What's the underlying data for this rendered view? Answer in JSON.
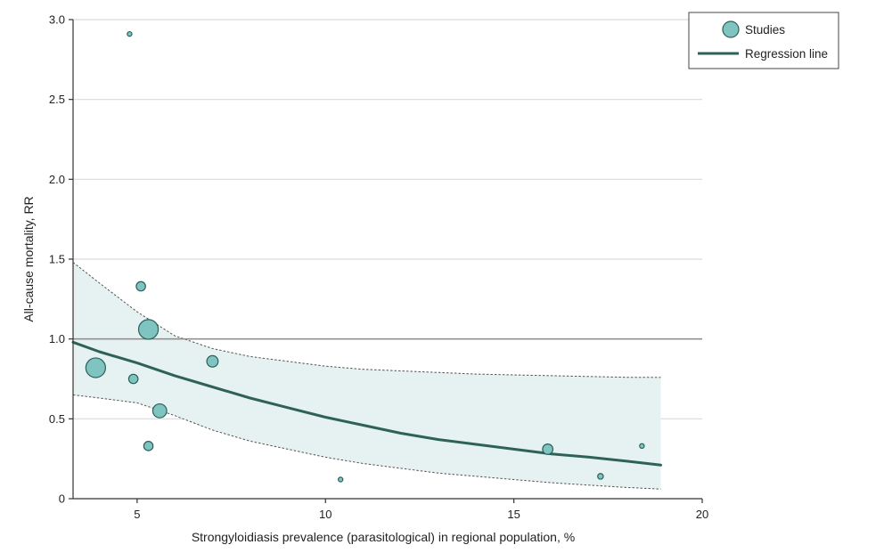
{
  "chart_data": {
    "type": "scatter",
    "xlabel": "Strongyloidiasis prevalence (parasitological) in regional population, %",
    "ylabel": "All-cause mortality, RR",
    "xlim": [
      3.3,
      20
    ],
    "ylim": [
      0,
      3.0
    ],
    "x_ticks": [
      {
        "value": 5,
        "label": "5"
      },
      {
        "value": 10,
        "label": "10"
      },
      {
        "value": 15,
        "label": "15"
      },
      {
        "value": 20,
        "label": "20"
      }
    ],
    "y_ticks": [
      {
        "value": 0,
        "label": "0"
      },
      {
        "value": 0.5,
        "label": "0.5"
      },
      {
        "value": 1.0,
        "label": "1.0"
      },
      {
        "value": 1.5,
        "label": "1.5"
      },
      {
        "value": 2.0,
        "label": "2.0"
      },
      {
        "value": 2.5,
        "label": "2.5"
      },
      {
        "value": 3.0,
        "label": "3.0"
      }
    ],
    "grid": "horizontal",
    "reference_line_y": 1.0,
    "legend": {
      "placement": "top-right",
      "entries": [
        {
          "label": "Studies",
          "kind": "marker"
        },
        {
          "label": "Regression line",
          "kind": "line"
        }
      ]
    },
    "colors": {
      "marker_fill": "#7fc4c0",
      "marker_stroke": "#2a5f58",
      "line": "#2e6258",
      "band_fill": "#e6f2f1",
      "band_edge": "#555555",
      "grid": "#d9d9d9",
      "reference": "#8a8a8a"
    },
    "studies": [
      {
        "x": 4.8,
        "y": 2.91,
        "weight": 1
      },
      {
        "x": 5.1,
        "y": 1.33,
        "weight": 4
      },
      {
        "x": 5.3,
        "y": 1.06,
        "weight": 18
      },
      {
        "x": 3.9,
        "y": 0.82,
        "weight": 18
      },
      {
        "x": 4.9,
        "y": 0.75,
        "weight": 4
      },
      {
        "x": 7.0,
        "y": 0.86,
        "weight": 6
      },
      {
        "x": 5.6,
        "y": 0.55,
        "weight": 9
      },
      {
        "x": 5.3,
        "y": 0.33,
        "weight": 4
      },
      {
        "x": 10.4,
        "y": 0.12,
        "weight": 1
      },
      {
        "x": 15.9,
        "y": 0.31,
        "weight": 5
      },
      {
        "x": 17.3,
        "y": 0.14,
        "weight": 1.5
      },
      {
        "x": 18.4,
        "y": 0.33,
        "weight": 1
      }
    ],
    "regression_line": [
      {
        "x": 3.3,
        "y": 0.98
      },
      {
        "x": 4,
        "y": 0.92
      },
      {
        "x": 5,
        "y": 0.85
      },
      {
        "x": 6,
        "y": 0.77
      },
      {
        "x": 7,
        "y": 0.7
      },
      {
        "x": 8,
        "y": 0.63
      },
      {
        "x": 9,
        "y": 0.57
      },
      {
        "x": 10,
        "y": 0.51
      },
      {
        "x": 11,
        "y": 0.46
      },
      {
        "x": 12,
        "y": 0.41
      },
      {
        "x": 13,
        "y": 0.37
      },
      {
        "x": 14,
        "y": 0.34
      },
      {
        "x": 15,
        "y": 0.31
      },
      {
        "x": 16,
        "y": 0.28
      },
      {
        "x": 17,
        "y": 0.26
      },
      {
        "x": 18,
        "y": 0.235
      },
      {
        "x": 18.9,
        "y": 0.21
      }
    ],
    "ci_upper": [
      {
        "x": 3.3,
        "y": 1.48
      },
      {
        "x": 4,
        "y": 1.35
      },
      {
        "x": 5,
        "y": 1.17
      },
      {
        "x": 6,
        "y": 1.02
      },
      {
        "x": 7,
        "y": 0.94
      },
      {
        "x": 8,
        "y": 0.89
      },
      {
        "x": 9,
        "y": 0.86
      },
      {
        "x": 10,
        "y": 0.83
      },
      {
        "x": 11,
        "y": 0.81
      },
      {
        "x": 12,
        "y": 0.8
      },
      {
        "x": 13,
        "y": 0.79
      },
      {
        "x": 14,
        "y": 0.78
      },
      {
        "x": 15,
        "y": 0.775
      },
      {
        "x": 16,
        "y": 0.77
      },
      {
        "x": 17,
        "y": 0.765
      },
      {
        "x": 18,
        "y": 0.76
      },
      {
        "x": 18.9,
        "y": 0.76
      }
    ],
    "ci_lower": [
      {
        "x": 3.3,
        "y": 0.65
      },
      {
        "x": 4,
        "y": 0.63
      },
      {
        "x": 5,
        "y": 0.6
      },
      {
        "x": 6,
        "y": 0.52
      },
      {
        "x": 7,
        "y": 0.43
      },
      {
        "x": 8,
        "y": 0.36
      },
      {
        "x": 9,
        "y": 0.31
      },
      {
        "x": 10,
        "y": 0.26
      },
      {
        "x": 11,
        "y": 0.22
      },
      {
        "x": 12,
        "y": 0.19
      },
      {
        "x": 13,
        "y": 0.16
      },
      {
        "x": 14,
        "y": 0.14
      },
      {
        "x": 15,
        "y": 0.12
      },
      {
        "x": 16,
        "y": 0.1
      },
      {
        "x": 17,
        "y": 0.085
      },
      {
        "x": 18,
        "y": 0.07
      },
      {
        "x": 18.9,
        "y": 0.06
      }
    ]
  }
}
